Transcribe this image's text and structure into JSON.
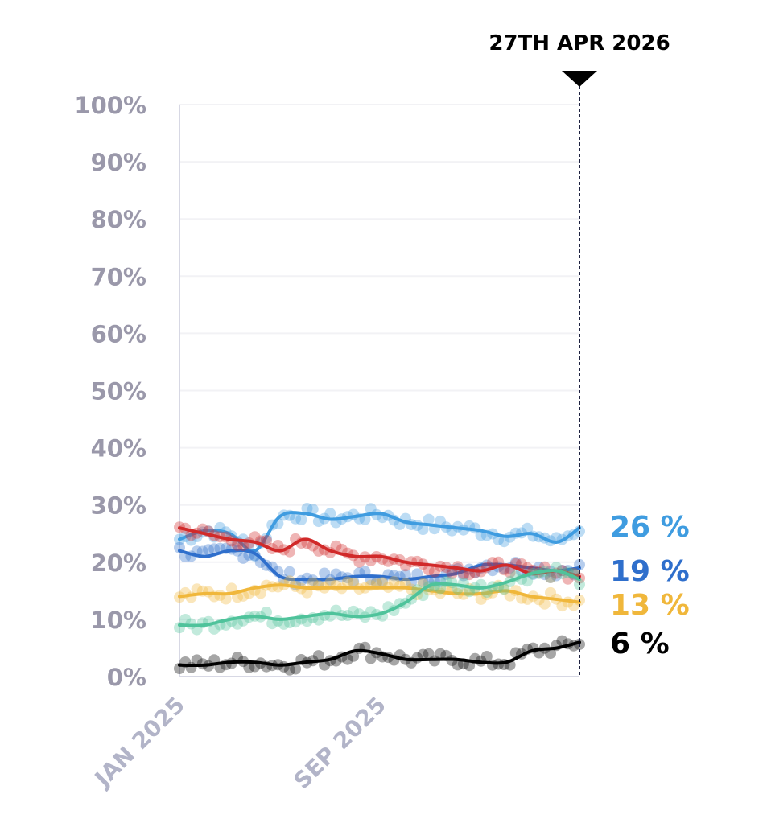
{
  "chart_data": {
    "type": "line",
    "y_axis": {
      "ticks": [
        "0%",
        "10%",
        "20%",
        "30%",
        "40%",
        "50%",
        "60%",
        "70%",
        "80%",
        "90%",
        "100%"
      ],
      "ylim": [
        0,
        100
      ]
    },
    "x_axis": {
      "tick_labels": [
        "JAN 2025",
        "SEP 2025"
      ],
      "xlim": [
        "2025-01",
        "2026-04-27"
      ]
    },
    "marker": {
      "label": "27TH APR 2026",
      "date": "2026-04-27"
    },
    "grid": true,
    "x_months": [
      0,
      1,
      2,
      3,
      4,
      5,
      6,
      7,
      8,
      9,
      10,
      11,
      12,
      13,
      14,
      15,
      15.9
    ],
    "series": [
      {
        "color": "#3f9ce0",
        "end_label": "26 %",
        "values": [
          24,
          25.5,
          25,
          22,
          28,
          28.5,
          27.5,
          28,
          28.5,
          27,
          26.5,
          26,
          25.5,
          24.5,
          25,
          23.5,
          26
        ]
      },
      {
        "color": "#2f6fcc",
        "end_label": "19 %",
        "values": [
          22,
          21,
          22,
          21.5,
          17.5,
          17,
          17,
          17.5,
          17.5,
          17,
          17.5,
          18,
          19.5,
          19.5,
          19,
          18.5,
          19
        ]
      },
      {
        "color": "#f0b73b",
        "end_label": "13 %",
        "values": [
          14,
          14.5,
          14.5,
          15.5,
          16,
          15.5,
          15.5,
          15.5,
          15.5,
          15.5,
          15,
          14.5,
          14.5,
          15,
          14,
          13.5,
          13
        ]
      },
      {
        "color": "#000000",
        "end_label": "6 %",
        "values": [
          2,
          2,
          2.5,
          2.5,
          2,
          2.5,
          3,
          4.5,
          4,
          3,
          3,
          3,
          2.5,
          2.5,
          4.5,
          5,
          6
        ]
      },
      {
        "color": "#d12a2a",
        "end_label": "",
        "values": [
          26,
          25,
          24,
          23.5,
          22,
          24,
          22,
          21,
          21,
          20,
          19.5,
          19,
          18.5,
          19.5,
          18,
          18.5,
          17.5
        ]
      },
      {
        "color": "#4fc39b",
        "end_label": "",
        "values": [
          9,
          9,
          10,
          10.5,
          10,
          10.5,
          11,
          10.5,
          11,
          13,
          16,
          16,
          15.5,
          16.5,
          18,
          18.5,
          17
        ]
      }
    ]
  }
}
